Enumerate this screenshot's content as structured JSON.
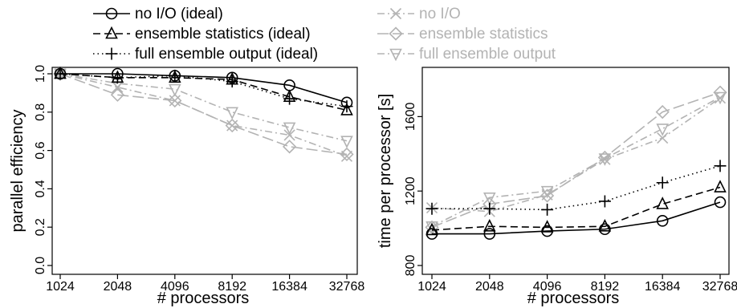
{
  "legend": [
    {
      "label": "no I/O (ideal)",
      "style": "solid",
      "marker": "circle",
      "color": "#000000"
    },
    {
      "label": "ensemble statistics (ideal)",
      "style": "dashed",
      "marker": "triangle",
      "color": "#000000"
    },
    {
      "label": "full ensemble output (ideal)",
      "style": "dotted",
      "marker": "plus",
      "color": "#000000"
    },
    {
      "label": "no I/O",
      "style": "dashdot",
      "marker": "x",
      "color": "#b3b3b3"
    },
    {
      "label": "ensemble statistics",
      "style": "longdash",
      "marker": "diamond",
      "color": "#b3b3b3"
    },
    {
      "label": "full ensemble output",
      "style": "dashdot",
      "marker": "triangle-down",
      "color": "#b3b3b3"
    }
  ],
  "chart_data": [
    {
      "type": "line",
      "xlabel": "# processors",
      "ylabel": "parallel efficiency",
      "categories": [
        "1024",
        "2048",
        "4096",
        "8192",
        "16384",
        "32768"
      ],
      "yticks": [
        "0.0",
        "0.2",
        "0.4",
        "0.6",
        "0.8",
        "1.0"
      ],
      "ylim": [
        0.0,
        1.0
      ],
      "series": [
        {
          "name": "no I/O (ideal)",
          "values": [
            1.0,
            1.0,
            0.99,
            0.98,
            0.94,
            0.85
          ]
        },
        {
          "name": "ensemble statistics (ideal)",
          "values": [
            1.0,
            0.98,
            0.98,
            0.97,
            0.88,
            0.81
          ]
        },
        {
          "name": "full ensemble output (ideal)",
          "values": [
            1.0,
            0.98,
            0.99,
            0.96,
            0.87,
            0.83
          ]
        },
        {
          "name": "no I/O",
          "values": [
            1.0,
            0.93,
            0.86,
            0.73,
            0.68,
            0.57
          ]
        },
        {
          "name": "ensemble statistics",
          "values": [
            1.0,
            0.89,
            0.86,
            0.73,
            0.62,
            0.58
          ]
        },
        {
          "name": "full ensemble output",
          "values": [
            1.0,
            0.95,
            0.92,
            0.8,
            0.72,
            0.65
          ]
        }
      ]
    },
    {
      "type": "line",
      "xlabel": "# processors",
      "ylabel": "time per processor [s]",
      "categories": [
        "1024",
        "2048",
        "4096",
        "8192",
        "16384",
        "32768"
      ],
      "yticks": [
        "800",
        "1200",
        "1600"
      ],
      "ylim": [
        800,
        1830
      ],
      "series": [
        {
          "name": "no I/O (ideal)",
          "values": [
            970,
            970,
            985,
            995,
            1040,
            1140
          ]
        },
        {
          "name": "ensemble statistics (ideal)",
          "values": [
            990,
            1010,
            1005,
            1010,
            1130,
            1220
          ]
        },
        {
          "name": "full ensemble output (ideal)",
          "values": [
            1105,
            1105,
            1100,
            1145,
            1245,
            1335
          ]
        },
        {
          "name": "no I/O",
          "values": [
            1110,
            1090,
            1180,
            1370,
            1485,
            1700
          ]
        },
        {
          "name": "ensemble statistics",
          "values": [
            1005,
            1130,
            1175,
            1380,
            1625,
            1730
          ]
        },
        {
          "name": "full ensemble output",
          "values": [
            1010,
            1165,
            1200,
            1375,
            1535,
            1705
          ]
        }
      ]
    }
  ]
}
